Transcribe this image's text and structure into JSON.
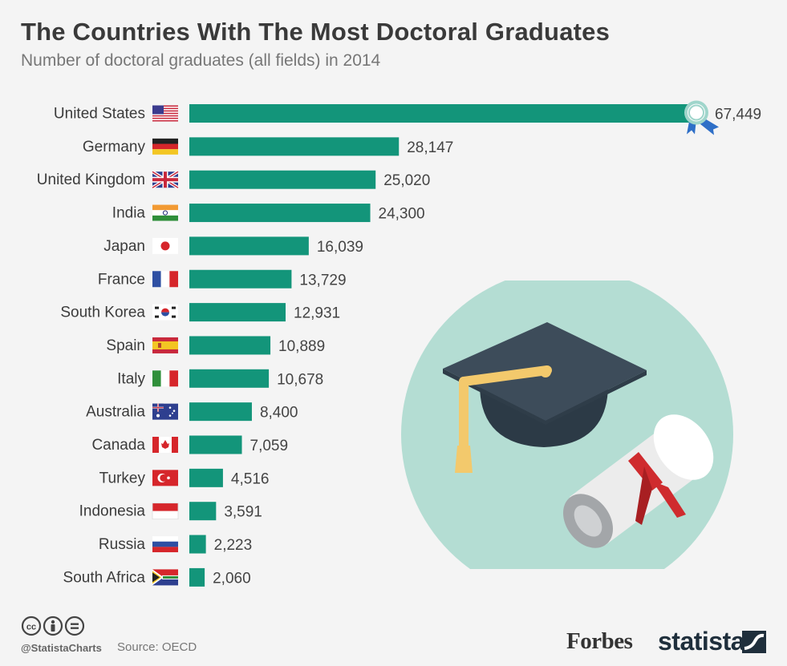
{
  "header": {
    "title": "The Countries With The Most Doctoral Graduates",
    "subtitle": "Number of doctoral graduates (all fields) in 2014"
  },
  "colors": {
    "bar": "#13957a",
    "circle": "#b4ddd3",
    "cap": "#3d4c5a",
    "tassel": "#f3c96c",
    "ribbon": "#cf2b2e",
    "diploma": "#ececec"
  },
  "chart_data": {
    "type": "bar",
    "orientation": "horizontal",
    "categories": [
      "United States",
      "Germany",
      "United Kingdom",
      "India",
      "Japan",
      "France",
      "South Korea",
      "Spain",
      "Italy",
      "Australia",
      "Canada",
      "Turkey",
      "Indonesia",
      "Russia",
      "South Africa"
    ],
    "values": [
      67449,
      28147,
      25020,
      24300,
      16039,
      13729,
      12931,
      10889,
      10678,
      8400,
      7059,
      4516,
      3591,
      2223,
      2060
    ],
    "value_labels": [
      "67,449",
      "28,147",
      "25,020",
      "24,300",
      "16,039",
      "13,729",
      "12,931",
      "10,889",
      "10,678",
      "8,400",
      "7,059",
      "4,516",
      "3,591",
      "2,223",
      "2,060"
    ],
    "title": "The Countries With The Most Doctoral Graduates",
    "subtitle": "Number of doctoral graduates (all fields) in 2014",
    "xlabel": "",
    "ylabel": "",
    "xlim": [
      0,
      67449
    ],
    "grid": false,
    "legend": "none",
    "highlight": "United States"
  },
  "flags": [
    "flag-us-icon",
    "flag-de-icon",
    "flag-gb-icon",
    "flag-in-icon",
    "flag-jp-icon",
    "flag-fr-icon",
    "flag-kr-icon",
    "flag-es-icon",
    "flag-it-icon",
    "flag-au-icon",
    "flag-ca-icon",
    "flag-tr-icon",
    "flag-id-icon",
    "flag-ru-icon",
    "flag-za-icon"
  ],
  "footer": {
    "handle": "@StatistaCharts",
    "source": "Source: OECD",
    "forbes": "Forbes",
    "statista": "statista",
    "license_icons": [
      "cc-icon",
      "by-icon",
      "nd-icon"
    ]
  }
}
